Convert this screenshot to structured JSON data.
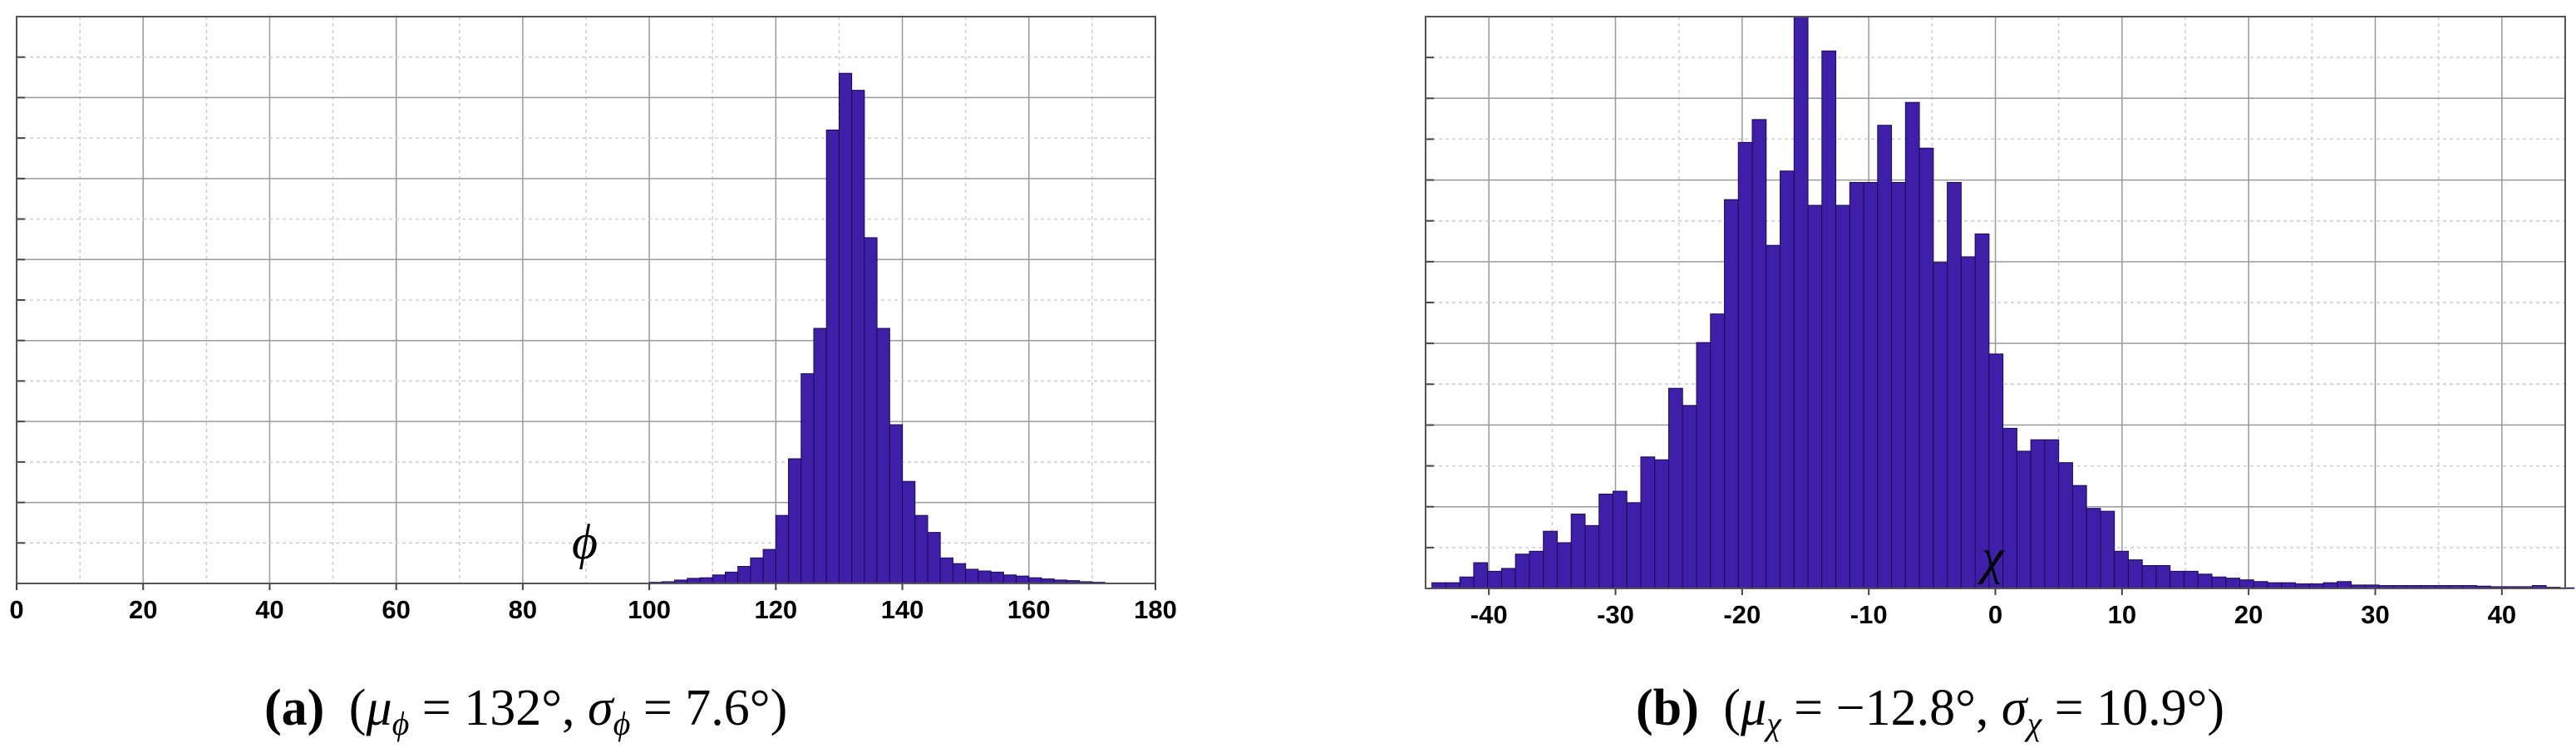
{
  "colors": {
    "bar_fill": "#3f1fa8",
    "bar_stroke": "#1a0a55",
    "grid_major": "#9a9a9a",
    "grid_minor": "#cfcfcf",
    "frame": "#555555"
  },
  "chart_data": [
    {
      "type": "bar",
      "panel_label": "(a)",
      "symbol": "ϕ",
      "caption": {
        "mu_sub": "ϕ",
        "mu_value": "132°",
        "sigma_sub": "ϕ",
        "sigma_value": "7.6°"
      },
      "xlabel": "",
      "ylabel": "",
      "xlim": [
        0,
        180
      ],
      "ylim": [
        0,
        100
      ],
      "xticks": [
        0,
        20,
        40,
        60,
        80,
        100,
        120,
        140,
        160,
        180
      ],
      "bin_width": 2,
      "grid": true,
      "series": [
        {
          "x": [
            100,
            102,
            104,
            106,
            108,
            110,
            112,
            114,
            116,
            118,
            120,
            122,
            124,
            126,
            128,
            130,
            132,
            134,
            136,
            138,
            140,
            142,
            144,
            146,
            148,
            150,
            152,
            154,
            156,
            158,
            160,
            162,
            164,
            166,
            168,
            170
          ],
          "values": [
            0.2,
            0.3,
            0.6,
            0.9,
            1,
            1.5,
            2,
            3,
            4.5,
            6,
            12,
            22,
            37,
            45,
            80,
            90,
            87,
            61,
            45,
            28,
            18,
            12,
            9,
            4.5,
            3.5,
            2.5,
            2.2,
            2,
            1.5,
            1.3,
            1,
            0.8,
            0.6,
            0.5,
            0.3,
            0.2
          ]
        }
      ]
    },
    {
      "type": "bar",
      "panel_label": "(b)",
      "symbol": "χ",
      "caption": {
        "mu_sub": "χ",
        "mu_value": "−12.8°",
        "sigma_sub": "χ",
        "sigma_value": "10.9°"
      },
      "xlabel": "",
      "ylabel": "",
      "xlim": [
        -45,
        45
      ],
      "ylim": [
        0,
        100
      ],
      "xticks": [
        -40,
        -30,
        -20,
        -10,
        0,
        10,
        20,
        30,
        40
      ],
      "bin_width": 1.1,
      "grid": true,
      "series": [
        {
          "x": [
            -44.5,
            -43.4,
            -42.3,
            -41.2,
            -40.1,
            -39,
            -37.9,
            -36.8,
            -35.7,
            -34.6,
            -33.5,
            -32.4,
            -31.3,
            -30.2,
            -29.1,
            -28,
            -26.9,
            -25.8,
            -24.7,
            -23.6,
            -22.5,
            -21.4,
            -20.3,
            -19.2,
            -18.1,
            -17,
            -15.9,
            -14.8,
            -13.7,
            -12.6,
            -11.5,
            -10.4,
            -9.3,
            -8.2,
            -7.1,
            -6,
            -4.9,
            -3.8,
            -2.7,
            -1.6,
            -0.5,
            0.6,
            1.7,
            2.8,
            3.9,
            5,
            6.1,
            7.2,
            8.3,
            9.4,
            10.5,
            11.6,
            12.7,
            13.8,
            14.9,
            16,
            17.1,
            18.2,
            19.3,
            20.4,
            21.5,
            22.6,
            23.7,
            24.8,
            25.9,
            27,
            28.1,
            29.2,
            30.3,
            31.4,
            32.5,
            33.6,
            34.7,
            35.8,
            36.9,
            38,
            39.1,
            40.2,
            41.3,
            42.4,
            43.5,
            44.6
          ],
          "values": [
            1,
            1,
            2,
            4.5,
            3,
            3.5,
            6,
            6.5,
            10,
            8,
            13,
            11,
            16.5,
            17,
            15,
            23,
            22.5,
            35,
            32,
            43,
            48,
            68,
            78,
            82,
            60,
            73,
            100,
            67,
            94,
            67,
            71,
            71,
            81,
            71,
            85,
            77,
            57,
            71,
            58,
            62,
            41,
            28,
            24,
            26,
            26,
            22,
            18,
            14,
            13.5,
            6.5,
            5,
            4,
            4,
            3,
            3,
            2.5,
            2,
            1.8,
            1.5,
            1.2,
            1,
            1,
            0.8,
            0.8,
            1,
            1.2,
            0.6,
            0.6,
            0.5,
            0.5,
            0.5,
            0.5,
            0.5,
            0.5,
            0.5,
            0.4,
            0.3,
            0.3,
            0.3,
            0.5,
            0.2,
            0.1
          ]
        }
      ]
    }
  ]
}
